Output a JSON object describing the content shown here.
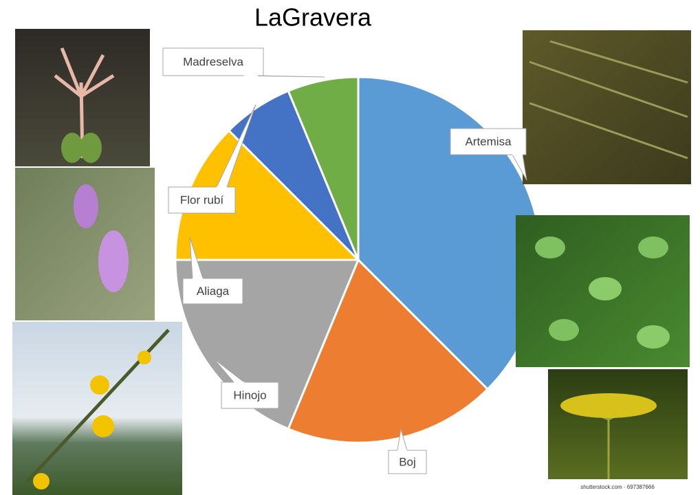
{
  "chart_data": {
    "type": "pie",
    "title": "LaGravera",
    "categories": [
      "Artemisa",
      "Boj",
      "Hinojo",
      "Aliaga",
      "Flor rubí",
      "Madreselva"
    ],
    "values": [
      6,
      3,
      3,
      2,
      1,
      1
    ],
    "colors": [
      "#5b9bd5",
      "#ed7d31",
      "#a5a5a5",
      "#ffc000",
      "#4472c4",
      "#70ad47"
    ]
  },
  "photo_credit": "shutterstock.com · 697387666"
}
